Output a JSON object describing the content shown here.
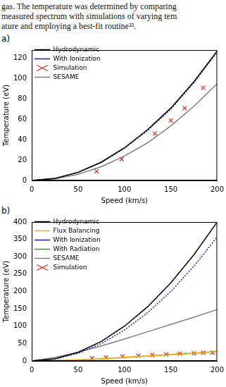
{
  "text_above": [
    "gas. The temperature was determined by comparing",
    "measured spectrum with simulations of varying tem",
    "ature and employing a best-fit routine³³."
  ],
  "chart_data": [
    {
      "panel": "a)",
      "type": "line",
      "x_label": "Speed (km/s)",
      "y_label": "Temperature (eV)",
      "xlim": [
        0,
        200
      ],
      "xticks": [
        0,
        50,
        100,
        150,
        200
      ],
      "ylim": [
        0,
        128
      ],
      "yticks": [
        0,
        20,
        40,
        60,
        80,
        100,
        120
      ],
      "grid": false,
      "legend": "upper left",
      "series": [
        {
          "name": "Hydrodynamic",
          "type": "line",
          "color": "#000000",
          "line_style": "solid",
          "x": [
            0,
            25,
            50,
            75,
            100,
            125,
            150,
            175,
            200
          ],
          "values": [
            0,
            2,
            8,
            18,
            32,
            50,
            71,
            97,
            127
          ]
        },
        {
          "name": "With Ionization",
          "type": "line",
          "color": "#1f1fd0",
          "line_style": "dotted",
          "x": [
            0,
            25,
            50,
            75,
            100,
            125,
            150,
            175,
            200
          ],
          "values": [
            0,
            2,
            8,
            17.5,
            31.5,
            49,
            70,
            96,
            126
          ]
        },
        {
          "name": "Simulation",
          "type": "scatter",
          "color": "#e8291c",
          "marker": "x",
          "x": [
            70,
            97,
            133,
            150,
            165,
            185
          ],
          "values": [
            9,
            21,
            46,
            59,
            71,
            91
          ]
        },
        {
          "name": "SESAME",
          "type": "line",
          "color": "#808080",
          "line_style": "solid",
          "x": [
            0,
            25,
            50,
            75,
            100,
            125,
            150,
            175,
            200
          ],
          "values": [
            0,
            1.5,
            6,
            13.5,
            24,
            37,
            53.5,
            73,
            95
          ]
        }
      ]
    },
    {
      "panel": "b)",
      "type": "line",
      "x_label": "Speed (km/s)",
      "y_label": "Temperature (eV)",
      "xlim": [
        0,
        200
      ],
      "xticks": [
        0,
        50,
        100,
        150,
        200
      ],
      "ylim": [
        0,
        400
      ],
      "yticks": [
        0,
        50,
        100,
        150,
        200,
        250,
        300,
        350,
        400
      ],
      "grid": false,
      "legend": "upper left",
      "series": [
        {
          "name": "Hydrodynamic",
          "type": "line",
          "color": "#000000",
          "line_style": "solid",
          "x": [
            0,
            25,
            50,
            75,
            100,
            125,
            150,
            175,
            200
          ],
          "values": [
            0,
            6,
            25,
            56,
            100,
            156,
            225,
            306,
            400
          ]
        },
        {
          "name": "Flux Balancing",
          "type": "line",
          "color": "#ffa500",
          "line_style": "solid",
          "x": [
            0,
            25,
            50,
            75,
            100,
            125,
            150,
            175,
            200
          ],
          "values": [
            0,
            1,
            3,
            6,
            10,
            14,
            18,
            22,
            27
          ]
        },
        {
          "name": "With Ionization",
          "type": "line",
          "color": "#1f1fd0",
          "line_style": "dotted",
          "x": [
            0,
            25,
            50,
            75,
            100,
            125,
            150,
            175,
            200
          ],
          "values": [
            0,
            5,
            22,
            50,
            89,
            139,
            200,
            273,
            357
          ]
        },
        {
          "name": "With Radiation",
          "type": "line",
          "color": "#2ca02c",
          "line_style": "dashdot",
          "x": [
            0,
            25,
            50,
            75,
            100,
            125,
            150,
            175,
            200
          ],
          "values": [
            0,
            1,
            3,
            6,
            10,
            14,
            19,
            23,
            27
          ]
        },
        {
          "name": "SESAME",
          "type": "line",
          "color": "#808080",
          "line_style": "solid",
          "x": [
            0,
            25,
            50,
            75,
            100,
            125,
            150,
            175,
            200
          ],
          "values": [
            0,
            10,
            25,
            43,
            63,
            84,
            105,
            126,
            148
          ]
        },
        {
          "name": "Simulation",
          "type": "scatter",
          "color": "#e8291c",
          "marker": "x",
          "x": [
            65,
            80,
            98,
            115,
            130,
            145,
            160,
            175,
            185,
            195
          ],
          "values": [
            8,
            10,
            13,
            15,
            17,
            19,
            21,
            22,
            24,
            24
          ]
        }
      ]
    }
  ]
}
